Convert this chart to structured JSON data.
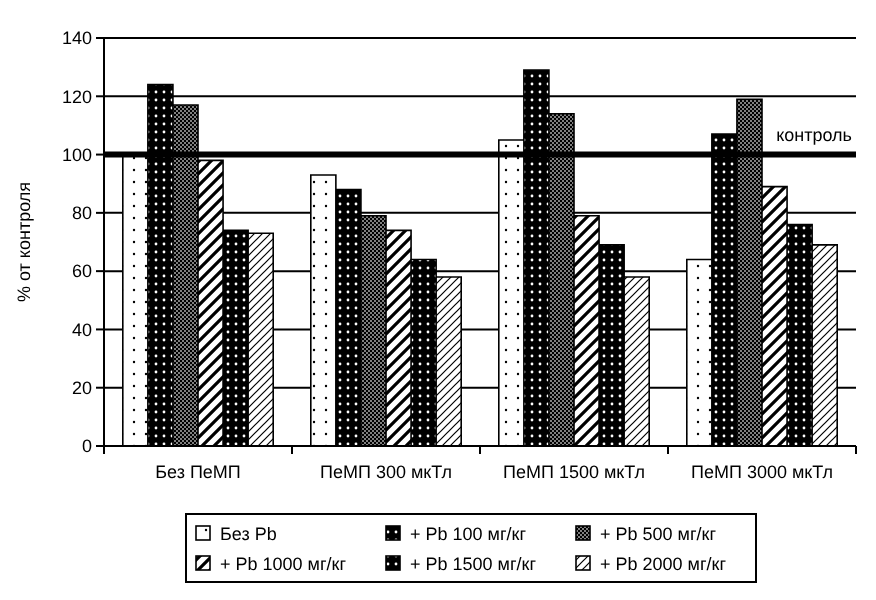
{
  "chart_data": {
    "type": "bar",
    "ylabel": "% от контроля",
    "categories": [
      "Без ПеМП",
      "ПеМП 300 мкТл",
      "ПеМП 1500 мкТл",
      "ПеМП 3000 мкТл"
    ],
    "series": [
      {
        "name": "Без Pb",
        "color": "#ffffff",
        "values": [
          100,
          93,
          105,
          64
        ]
      },
      {
        "name": "+ Pb 100 мг/кг",
        "color": "#000000",
        "values": [
          124,
          88,
          129,
          107
        ]
      },
      {
        "name": "+ Pb 500 мг/кг",
        "color": "#808080",
        "values": [
          117,
          79,
          114,
          119
        ]
      },
      {
        "name": "+ Pb 1000 мг/кг",
        "color": "#ffffff",
        "values": [
          98,
          74,
          79,
          89
        ]
      },
      {
        "name": "+ Pb 1500 мг/кг",
        "color": "#000000",
        "values": [
          74,
          64,
          69,
          76
        ]
      },
      {
        "name": "+ Pb 2000 мг/кг",
        "color": "#ffffff",
        "values": [
          73,
          58,
          58,
          69
        ]
      }
    ],
    "ylim": [
      0,
      140
    ],
    "yticks": [
      0,
      20,
      40,
      60,
      80,
      100,
      120,
      140
    ],
    "grid": "y",
    "legend": "bottom",
    "ref_lines": [
      {
        "axis": "y",
        "value": 100,
        "label": "контроль",
        "color": "#000000"
      }
    ]
  }
}
